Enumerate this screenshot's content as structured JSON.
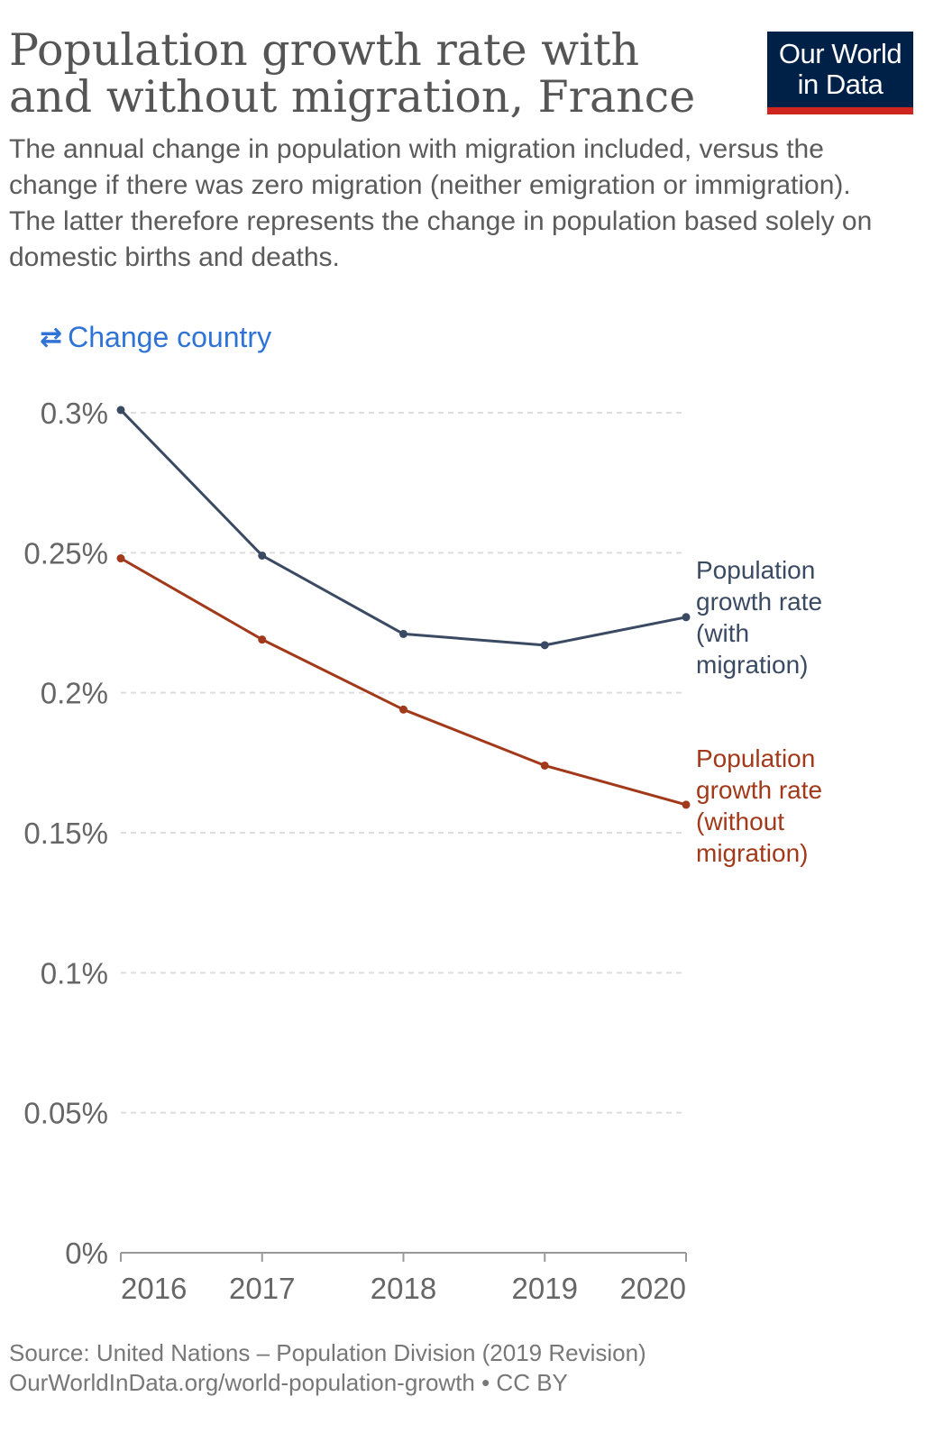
{
  "header": {
    "title": "Population growth rate with and without migration, France",
    "subtitle": "The annual change in population with migration included, versus the change if there was zero migration (neither emigration or immigration). The latter therefore represents the change in population based solely on domestic births and deaths.",
    "logo_line1": "Our World",
    "logo_line2": "in Data"
  },
  "controls": {
    "change_country_label": "Change country",
    "change_country_icon": "swap-arrows-icon"
  },
  "colors": {
    "with_migration": "#3b4a63",
    "without_migration": "#a1391a",
    "grid": "#dddddd",
    "axis": "#999999",
    "link": "#2f73d6",
    "logo_bg": "#002147",
    "logo_accent": "#ce261e"
  },
  "chart_data": {
    "type": "line",
    "title": "Population growth rate with and without migration, France",
    "x": [
      2016,
      2017,
      2018,
      2019,
      2020
    ],
    "x_tick_labels": [
      "2016",
      "2017",
      "2018",
      "2019",
      "2020"
    ],
    "ylim": [
      0,
      0.3
    ],
    "y_ticks": [
      0,
      0.05,
      0.1,
      0.15,
      0.2,
      0.25,
      0.3
    ],
    "y_tick_labels": [
      "0%",
      "0.05%",
      "0.1%",
      "0.15%",
      "0.2%",
      "0.25%",
      "0.3%"
    ],
    "grid": true,
    "legend": "inline-right",
    "series": [
      {
        "name": "Population growth rate (with migration)",
        "label_lines": [
          "Population",
          "growth rate",
          "(with",
          "migration)"
        ],
        "color": "#3b4a63",
        "values": [
          0.301,
          0.249,
          0.221,
          0.217,
          0.227
        ]
      },
      {
        "name": "Population growth rate (without migration)",
        "label_lines": [
          "Population",
          "growth rate",
          "(without",
          "migration)"
        ],
        "color": "#a1391a",
        "values": [
          0.248,
          0.219,
          0.194,
          0.174,
          0.16
        ]
      }
    ]
  },
  "footer": {
    "source": "Source: United Nations – Population Division (2019 Revision)",
    "url_license": "OurWorldInData.org/world-population-growth • CC BY"
  }
}
